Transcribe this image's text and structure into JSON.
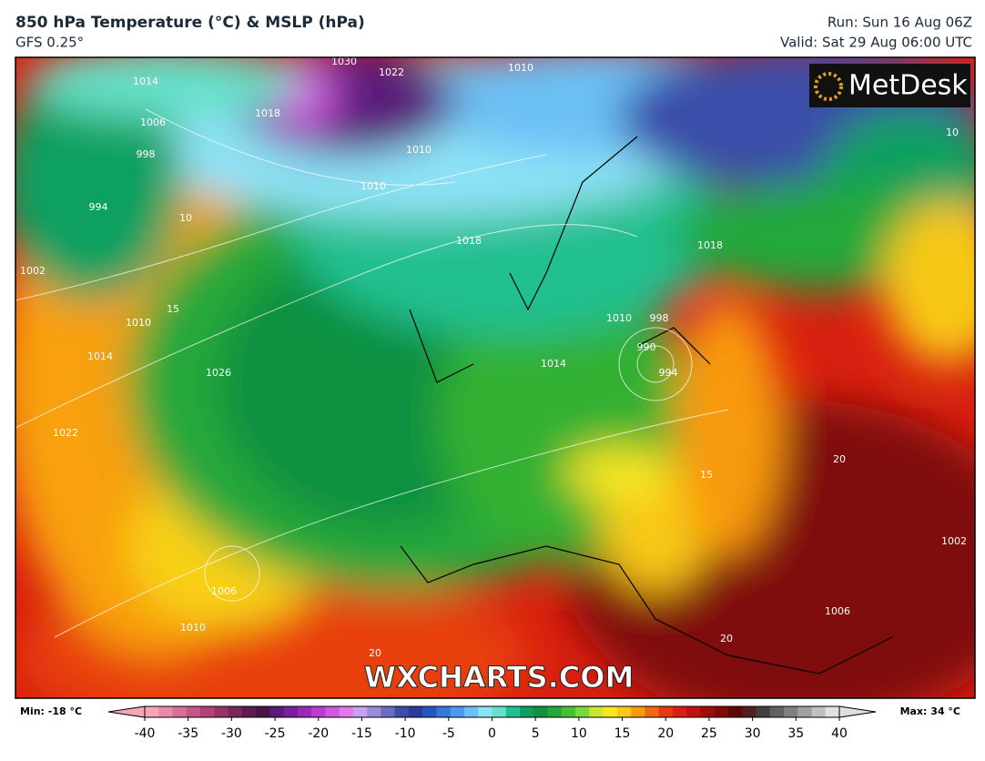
{
  "header": {
    "title": "850 hPa Temperature (°C) & MSLP (hPa)",
    "subtitle": "GFS 0.25°",
    "run": "Run: Sun 16 Aug 06Z",
    "valid": "Valid: Sat 29 Aug 06:00 UTC"
  },
  "map": {
    "logo": "MetDesk",
    "watermark": "WXCHARTS.COM",
    "contour_labels": [
      "1030",
      "1022",
      "1018",
      "1014",
      "1010",
      "1006",
      "998",
      "994",
      "1002",
      "1010",
      "1014",
      "1022",
      "1026",
      "1010",
      "1018",
      "1010",
      "1018",
      "1014",
      "1010",
      "998",
      "990",
      "994",
      "1006",
      "1010",
      "1006",
      "1002",
      "20",
      "20",
      "15",
      "15",
      "10",
      "10",
      "20"
    ]
  },
  "colorbar": {
    "min_label": "Min: -18 °C",
    "max_label": "Max: 34 °C",
    "range": [
      -40,
      40
    ],
    "ticks": [
      -40,
      -35,
      -30,
      -25,
      -20,
      -15,
      -10,
      -5,
      0,
      5,
      10,
      15,
      20,
      25,
      30,
      35,
      40
    ],
    "colors": [
      "#f7a6b8",
      "#e98aa6",
      "#d96e96",
      "#c65686",
      "#b04276",
      "#963468",
      "#7a285a",
      "#5e1c4c",
      "#4a1444",
      "#5a1a7a",
      "#7a1f9a",
      "#9a2ab8",
      "#b83ccf",
      "#d05ade",
      "#e07ae8",
      "#c8a0f0",
      "#9a8ad8",
      "#6a6cc4",
      "#3b4ea8",
      "#2a3d9a",
      "#2854c0",
      "#3478de",
      "#4a9aee",
      "#6ac0f4",
      "#8ee2f6",
      "#66e0c8",
      "#22c090",
      "#0fa060",
      "#109040",
      "#24a83a",
      "#48c030",
      "#7ad83a",
      "#c8e830",
      "#f8e820",
      "#f8c818",
      "#f89a10",
      "#f06a10",
      "#e83a10",
      "#d81e10",
      "#c01010",
      "#a00c0c",
      "#800a0a",
      "#600808",
      "#502020",
      "#404040",
      "#606060",
      "#808080",
      "#a0a0a0",
      "#c0c0c0",
      "#e0e0e0"
    ]
  }
}
